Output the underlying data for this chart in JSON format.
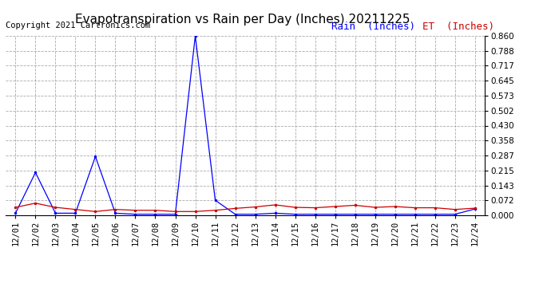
{
  "title": "Evapotranspiration vs Rain per Day (Inches) 20211225",
  "copyright": "Copyright 2021 Cartronics.com",
  "legend_rain": "Rain  (Inches)",
  "legend_et": "ET  (Inches)",
  "x_labels": [
    "12/01",
    "12/02",
    "12/03",
    "12/04",
    "12/05",
    "12/06",
    "12/07",
    "12/08",
    "12/09",
    "12/10",
    "12/11",
    "12/12",
    "12/13",
    "12/14",
    "12/15",
    "12/16",
    "12/17",
    "12/18",
    "12/19",
    "12/20",
    "12/21",
    "12/22",
    "12/23",
    "12/24"
  ],
  "rain_values": [
    0.01,
    0.205,
    0.01,
    0.01,
    0.282,
    0.01,
    0.005,
    0.005,
    0.005,
    0.86,
    0.072,
    0.005,
    0.005,
    0.01,
    0.005,
    0.005,
    0.005,
    0.005,
    0.005,
    0.005,
    0.005,
    0.005,
    0.005,
    0.03
  ],
  "et_values": [
    0.038,
    0.058,
    0.038,
    0.028,
    0.018,
    0.028,
    0.024,
    0.024,
    0.018,
    0.018,
    0.024,
    0.033,
    0.04,
    0.05,
    0.038,
    0.036,
    0.042,
    0.048,
    0.038,
    0.042,
    0.036,
    0.036,
    0.028,
    0.034
  ],
  "rain_color": "#0000ff",
  "et_color": "#cc0000",
  "background_color": "#ffffff",
  "grid_color": "#aaaaaa",
  "ylim": [
    0.0,
    0.86
  ],
  "yticks": [
    0.0,
    0.072,
    0.143,
    0.215,
    0.287,
    0.358,
    0.43,
    0.502,
    0.573,
    0.645,
    0.717,
    0.788,
    0.86
  ],
  "title_fontsize": 11,
  "copyright_fontsize": 7.5,
  "legend_fontsize": 9,
  "tick_fontsize": 7.5,
  "markersize": 3,
  "linewidth": 0.9
}
